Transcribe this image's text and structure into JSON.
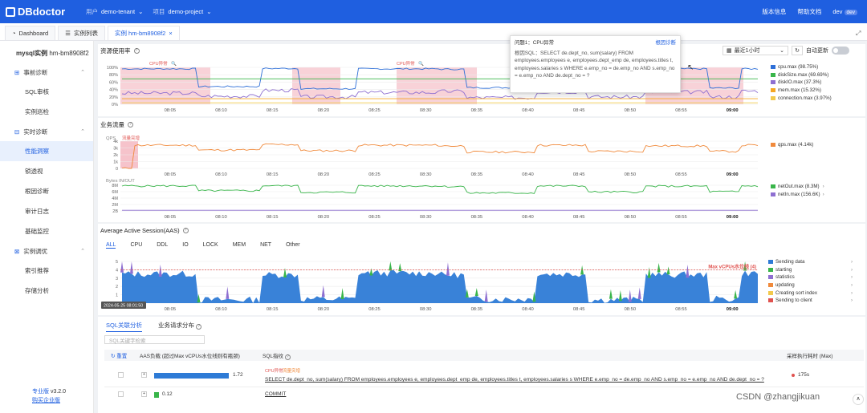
{
  "header": {
    "logo": "DBdoctor",
    "tenant_label": "用户",
    "tenant": "demo-tenant",
    "project_label": "项目",
    "project": "demo-project",
    "version_info": "版本信息",
    "help": "帮助文档",
    "user": "dev",
    "user_badge": "dev"
  },
  "tabs": [
    {
      "label": "Dashboard"
    },
    {
      "label": "实例列表"
    },
    {
      "label": "实例 hm-bm8908f2",
      "close": "×"
    }
  ],
  "sidebar": {
    "instance_label": "mysql实例",
    "instance_id": "hm-bm8908f2",
    "groups": [
      {
        "label": "事前诊断",
        "items": [
          "SQL审核",
          "实例巡检"
        ]
      },
      {
        "label": "实时诊断",
        "items": [
          "性能洞察",
          "锁透视",
          "根因诊断",
          "审计日志",
          "基础监控"
        ]
      },
      {
        "label": "实例调优",
        "items": [
          "索引推荐",
          "存储分析"
        ]
      }
    ],
    "edition": "专业版",
    "version": "v3.2.0",
    "buy": "购买企业版"
  },
  "resource": {
    "title": "资源使用率",
    "time_select": "最近1小时",
    "auto_refresh": "自动更新",
    "y_ticks": [
      "100%",
      "80%",
      "60%",
      "40%",
      "20%",
      "0%"
    ],
    "x_ticks": [
      "08:05",
      "08:10",
      "08:15",
      "08:20",
      "08:25",
      "08:30",
      "08:35",
      "08:40",
      "08:45",
      "08:50",
      "08:55",
      "09:00"
    ],
    "anomaly_label": "CPU异常",
    "legend": [
      {
        "name": "cpu.max (98.75%)",
        "color": "#2e6fd8"
      },
      {
        "name": "diskSize.max (69.69%)",
        "color": "#39b54a"
      },
      {
        "name": "diskIO.max (37.3%)",
        "color": "#8e6fd1"
      },
      {
        "name": "mem.max (15.32%)",
        "color": "#f5a623"
      },
      {
        "name": "connection.max (3.97%)",
        "color": "#f2c94c"
      }
    ]
  },
  "popup": {
    "title": "问题1：CPU异常",
    "action": "根因诊断",
    "body": "根因SQL：SELECT de.dept_no, sum(salary) FROM employees.employees e, employees.dept_emp de, employees.titles t, employees.salaries s WHERE e.emp_no = de.emp_no  AND s.emp_no = e.emp_no AND de.dept_no = ?"
  },
  "traffic": {
    "title": "业务流量",
    "qps_label": "QPS",
    "qps_ticks": [
      "4k",
      "3k",
      "2k",
      "1k",
      "0"
    ],
    "qps_anomaly": "流量突增",
    "qps_legend": {
      "name": "qps.max (4.14k)",
      "color": "#f08a3c"
    },
    "bytes_label": "Bytes IN/OUT",
    "bytes_ticks": [
      "8M",
      "6M",
      "4M",
      "2M",
      "2B"
    ],
    "bytes_legend": [
      {
        "name": "netOut.max (8.3M)",
        "color": "#39b54a"
      },
      {
        "name": "netIn.max (156.6K)",
        "color": "#8e6fd1"
      }
    ]
  },
  "aas": {
    "title": "Average Active Session(AAS)",
    "tabs": [
      "ALL",
      "CPU",
      "DDL",
      "IO",
      "LOCK",
      "MEM",
      "NET",
      "Other"
    ],
    "y_ticks": [
      "5",
      "4",
      "3",
      "2",
      "1",
      "0"
    ],
    "max_line": "Max vCPUs水位线 (4)",
    "time_tip": "2024-05-25 08:01:50",
    "legend": [
      {
        "name": "Sending data",
        "color": "#2e7bd6"
      },
      {
        "name": "starting",
        "color": "#39b54a"
      },
      {
        "name": "statistics",
        "color": "#8e6fd1"
      },
      {
        "name": "updating",
        "color": "#f08a3c"
      },
      {
        "name": "Creating sort index",
        "color": "#f2c94c"
      },
      {
        "name": "Sending to client",
        "color": "#e0524f"
      }
    ]
  },
  "sql": {
    "tabs": [
      "SQL关联分析",
      "业务请求分布"
    ],
    "search_placeholder": "SQL关键字检索",
    "reset": "重置",
    "col_aas": "AAS负载 (超过Max vCPUs水位线则有瓶颈)",
    "col_sql": "SQL指纹",
    "col_time": "采样执行耗时 (Max)",
    "rows": [
      {
        "aas": "1.72",
        "tag1": "CPU异常",
        "tag2": "流量突增",
        "sql": "SELECT de.dept_no, sum(salary) FROM employees.employees e, employees.dept_emp de, employees.titles t, employees.salaries s WHERE e.emp_no = de.emp_no AND s.emp_no = e.emp_no AND de.dept_no = ?",
        "time": "175s",
        "frac": 0.62
      },
      {
        "aas": "0.12",
        "sql": "COMMIT",
        "time": "",
        "frac": 0.04
      }
    ]
  },
  "watermark": "CSDN @zhangjikuan",
  "chart_data": [
    {
      "type": "line",
      "title": "资源使用率",
      "x": [
        "08:05",
        "08:10",
        "08:15",
        "08:20",
        "08:25",
        "08:30",
        "08:35",
        "08:40",
        "08:45",
        "08:50",
        "08:55",
        "09:00"
      ],
      "ylim": [
        0,
        100
      ],
      "series": [
        {
          "name": "cpu.max",
          "values": [
            96,
            45,
            98,
            40,
            97,
            96,
            45,
            97,
            40,
            97,
            40,
            97
          ]
        },
        {
          "name": "diskSize.max",
          "values": [
            69,
            69,
            69,
            69,
            69,
            69,
            69,
            69,
            69,
            69,
            69,
            69
          ]
        },
        {
          "name": "diskIO.max",
          "values": [
            30,
            25,
            35,
            20,
            32,
            30,
            22,
            34,
            20,
            33,
            22,
            35
          ]
        },
        {
          "name": "mem.max",
          "values": [
            15,
            15,
            15,
            15,
            15,
            15,
            15,
            15,
            15,
            15,
            15,
            15
          ]
        },
        {
          "name": "connection.max",
          "values": [
            4,
            4,
            4,
            4,
            4,
            4,
            4,
            4,
            4,
            4,
            4,
            4
          ]
        }
      ]
    },
    {
      "type": "line",
      "title": "QPS",
      "x": [
        "08:05",
        "08:10",
        "08:15",
        "08:20",
        "08:25",
        "08:30",
        "08:35",
        "08:40",
        "08:45",
        "08:50",
        "08:55",
        "09:00"
      ],
      "ylim": [
        0,
        4000
      ],
      "series": [
        {
          "name": "qps.max",
          "values": [
            3400,
            2800,
            3500,
            2600,
            3400,
            3300,
            2500,
            3400,
            2600,
            3300,
            2600,
            3400
          ]
        }
      ]
    },
    {
      "type": "line",
      "title": "Bytes IN/OUT",
      "x": [
        "08:05",
        "08:10",
        "08:15",
        "08:20",
        "08:25",
        "08:30",
        "08:35",
        "08:40",
        "08:45",
        "08:50",
        "08:55",
        "09:00"
      ],
      "ylim": [
        0,
        8000000
      ],
      "series": [
        {
          "name": "netOut.max",
          "values": [
            7800000,
            6500000,
            7900000,
            6000000,
            7800000,
            7600000,
            5800000,
            7800000,
            6000000,
            7700000,
            6200000,
            7800000
          ]
        },
        {
          "name": "netIn.max",
          "values": [
            150000,
            140000,
            150000,
            130000,
            150000,
            150000,
            130000,
            150000,
            130000,
            150000,
            130000,
            150000
          ]
        }
      ]
    },
    {
      "type": "area",
      "title": "Average Active Session(AAS)",
      "x": [
        "08:05",
        "08:10",
        "08:15",
        "08:20",
        "08:25",
        "08:30",
        "08:35",
        "08:40",
        "08:45",
        "08:50",
        "08:55",
        "09:00"
      ],
      "ylim": [
        0,
        5
      ],
      "series": [
        {
          "name": "Sending data",
          "values": [
            3.6,
            0.4,
            3.5,
            0.5,
            3.6,
            3.5,
            0.6,
            3.5,
            0.5,
            3.4,
            0.5,
            3.6
          ]
        },
        {
          "name": "starting",
          "values": [
            0.3,
            0.2,
            0.3,
            0.2,
            0.4,
            0.3,
            0.2,
            0.3,
            0.2,
            0.3,
            0.2,
            0.3
          ]
        },
        {
          "name": "statistics",
          "values": [
            0.1,
            0.1,
            0.1,
            0.1,
            0.1,
            0.1,
            0.1,
            0.1,
            0.1,
            0.1,
            0.1,
            0.1
          ]
        }
      ]
    }
  ]
}
